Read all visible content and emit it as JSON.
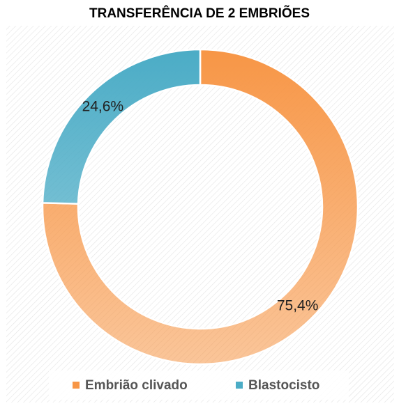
{
  "chart_data": {
    "type": "donut",
    "title": "TRANSFERÊNCIA DE 2 EMBRIÕES",
    "categories": [
      "Embrião clivado",
      "Blastocisto"
    ],
    "values": [
      75.4,
      24.6
    ],
    "value_labels": [
      "75,4%",
      "24,6%"
    ],
    "colors": [
      "#f79646",
      "#4bacc6"
    ],
    "legend": "bottom"
  }
}
